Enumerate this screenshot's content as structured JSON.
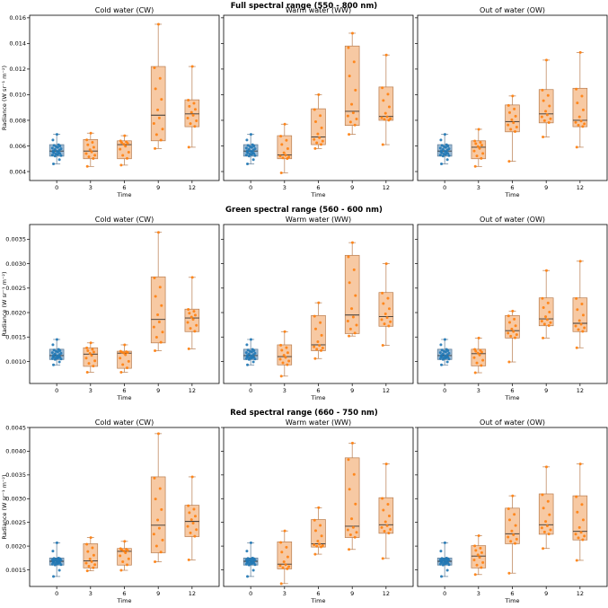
{
  "colors": {
    "control_fill": "#9ebcd6",
    "control_edge": "#5a7a96",
    "control_point": "#1f77b4",
    "treat_fill": "#f7c9a3",
    "treat_edge": "#b87c4e",
    "treat_point": "#ff7f0e",
    "median": "#333333"
  },
  "chart_data": [
    {
      "type": "box",
      "row_title": "Full spectral range (550 - 800 nm)",
      "ylabel": "Radiance (W sr⁻¹ m⁻²)",
      "xlabel": "Time",
      "categories": [
        "0",
        "3",
        "6",
        "9",
        "12"
      ],
      "ylim": [
        0.0033,
        0.0162
      ],
      "yticks": [
        "0.004",
        "0.006",
        "0.008",
        "0.010",
        "0.012",
        "0.014",
        "0.016"
      ],
      "ytick_values": [
        0.004,
        0.006,
        0.008,
        0.01,
        0.012,
        0.014,
        0.016
      ],
      "panels": [
        {
          "title": "Cold water (CW)",
          "boxes": [
            {
              "q1": 0.0052,
              "median": 0.0056,
              "q3": 0.0061,
              "whisker_low": 0.0046,
              "whisker_high": 0.0069
            },
            {
              "q1": 0.005,
              "median": 0.0056,
              "q3": 0.0065,
              "whisker_low": 0.0044,
              "whisker_high": 0.007
            },
            {
              "q1": 0.005,
              "median": 0.0061,
              "q3": 0.0064,
              "whisker_low": 0.0045,
              "whisker_high": 0.0068
            },
            {
              "q1": 0.0064,
              "median": 0.0084,
              "q3": 0.0122,
              "whisker_low": 0.0058,
              "whisker_high": 0.0155
            },
            {
              "q1": 0.0075,
              "median": 0.0085,
              "q3": 0.0096,
              "whisker_low": 0.0059,
              "whisker_high": 0.0122
            }
          ]
        },
        {
          "title": "Warm water (WW)",
          "boxes": [
            {
              "q1": 0.0052,
              "median": 0.0056,
              "q3": 0.0061,
              "whisker_low": 0.0046,
              "whisker_high": 0.0069
            },
            {
              "q1": 0.005,
              "median": 0.0053,
              "q3": 0.0068,
              "whisker_low": 0.0039,
              "whisker_high": 0.0077
            },
            {
              "q1": 0.0061,
              "median": 0.0067,
              "q3": 0.0089,
              "whisker_low": 0.0058,
              "whisker_high": 0.01
            },
            {
              "q1": 0.0076,
              "median": 0.0087,
              "q3": 0.0138,
              "whisker_low": 0.0069,
              "whisker_high": 0.0148
            },
            {
              "q1": 0.008,
              "median": 0.0083,
              "q3": 0.0106,
              "whisker_low": 0.0061,
              "whisker_high": 0.0131
            }
          ]
        },
        {
          "title": "Out of water (OW)",
          "boxes": [
            {
              "q1": 0.0052,
              "median": 0.0056,
              "q3": 0.0061,
              "whisker_low": 0.0046,
              "whisker_high": 0.0069
            },
            {
              "q1": 0.005,
              "median": 0.0059,
              "q3": 0.0064,
              "whisker_low": 0.0044,
              "whisker_high": 0.0073
            },
            {
              "q1": 0.0071,
              "median": 0.0079,
              "q3": 0.0092,
              "whisker_low": 0.0048,
              "whisker_high": 0.0099
            },
            {
              "q1": 0.0078,
              "median": 0.0085,
              "q3": 0.0104,
              "whisker_low": 0.0067,
              "whisker_high": 0.0127
            },
            {
              "q1": 0.0075,
              "median": 0.008,
              "q3": 0.0105,
              "whisker_low": 0.0059,
              "whisker_high": 0.0133
            }
          ]
        }
      ]
    },
    {
      "type": "box",
      "row_title": "Green spectral range (560 - 600 nm)",
      "ylabel": "Radiance (W sr⁻¹ m⁻²)",
      "xlabel": "Time",
      "categories": [
        "0",
        "3",
        "6",
        "9",
        "12"
      ],
      "ylim": [
        0.00055,
        0.0038
      ],
      "yticks": [
        "0.0010",
        "0.0015",
        "0.0020",
        "0.0025",
        "0.0030",
        "0.0035"
      ],
      "ytick_values": [
        0.001,
        0.0015,
        0.002,
        0.0025,
        0.003,
        0.0035
      ],
      "panels": [
        {
          "title": "Cold water (CW)",
          "boxes": [
            {
              "q1": 0.00104,
              "median": 0.00112,
              "q3": 0.00125,
              "whisker_low": 0.00093,
              "whisker_high": 0.00145
            },
            {
              "q1": 0.0009,
              "median": 0.00115,
              "q3": 0.00128,
              "whisker_low": 0.00078,
              "whisker_high": 0.00138
            },
            {
              "q1": 0.00086,
              "median": 0.00117,
              "q3": 0.00121,
              "whisker_low": 0.00078,
              "whisker_high": 0.00134
            },
            {
              "q1": 0.00138,
              "median": 0.00186,
              "q3": 0.00273,
              "whisker_low": 0.00122,
              "whisker_high": 0.00364
            },
            {
              "q1": 0.00161,
              "median": 0.00189,
              "q3": 0.00207,
              "whisker_low": 0.00126,
              "whisker_high": 0.00272
            }
          ]
        },
        {
          "title": "Warm water (WW)",
          "boxes": [
            {
              "q1": 0.00104,
              "median": 0.00112,
              "q3": 0.00125,
              "whisker_low": 0.00093,
              "whisker_high": 0.00145
            },
            {
              "q1": 0.00093,
              "median": 0.0011,
              "q3": 0.00134,
              "whisker_low": 0.0007,
              "whisker_high": 0.00161
            },
            {
              "q1": 0.00122,
              "median": 0.00134,
              "q3": 0.00194,
              "whisker_low": 0.00106,
              "whisker_high": 0.0022
            },
            {
              "q1": 0.00157,
              "median": 0.00195,
              "q3": 0.00317,
              "whisker_low": 0.00152,
              "whisker_high": 0.00343
            },
            {
              "q1": 0.00172,
              "median": 0.00192,
              "q3": 0.00241,
              "whisker_low": 0.00133,
              "whisker_high": 0.003
            }
          ]
        },
        {
          "title": "Out of water (OW)",
          "boxes": [
            {
              "q1": 0.00104,
              "median": 0.00112,
              "q3": 0.00125,
              "whisker_low": 0.00093,
              "whisker_high": 0.00145
            },
            {
              "q1": 0.00091,
              "median": 0.00116,
              "q3": 0.00125,
              "whisker_low": 0.00077,
              "whisker_high": 0.00148
            },
            {
              "q1": 0.00148,
              "median": 0.00163,
              "q3": 0.00194,
              "whisker_low": 0.00099,
              "whisker_high": 0.00203
            },
            {
              "q1": 0.00173,
              "median": 0.00187,
              "q3": 0.0023,
              "whisker_low": 0.00148,
              "whisker_high": 0.00286
            },
            {
              "q1": 0.00161,
              "median": 0.00178,
              "q3": 0.0023,
              "whisker_low": 0.00128,
              "whisker_high": 0.00305
            }
          ]
        }
      ]
    },
    {
      "type": "box",
      "row_title": "Red spectral range (660 - 750 nm)",
      "ylabel": "Radiance (W sr⁻¹ m⁻²)",
      "xlabel": "Time",
      "categories": [
        "0",
        "3",
        "6",
        "9",
        "12"
      ],
      "ylim": [
        0.00115,
        0.0045
      ],
      "yticks": [
        "0.0015",
        "0.0020",
        "0.0025",
        "0.0030",
        "0.0035",
        "0.0040",
        "0.0045"
      ],
      "ytick_values": [
        0.0015,
        0.002,
        0.0025,
        0.003,
        0.0035,
        0.004,
        0.0045
      ],
      "panels": [
        {
          "title": "Cold water (CW)",
          "boxes": [
            {
              "q1": 0.0016,
              "median": 0.00168,
              "q3": 0.00175,
              "whisker_low": 0.00136,
              "whisker_high": 0.00207
            },
            {
              "q1": 0.00154,
              "median": 0.00169,
              "q3": 0.00205,
              "whisker_low": 0.00148,
              "whisker_high": 0.00218
            },
            {
              "q1": 0.0016,
              "median": 0.00189,
              "q3": 0.00195,
              "whisker_low": 0.00149,
              "whisker_high": 0.0021
            },
            {
              "q1": 0.00186,
              "median": 0.00244,
              "q3": 0.00346,
              "whisker_low": 0.00167,
              "whisker_high": 0.00437
            },
            {
              "q1": 0.0022,
              "median": 0.00252,
              "q3": 0.00286,
              "whisker_low": 0.00171,
              "whisker_high": 0.00346
            }
          ]
        },
        {
          "title": "Warm water (WW)",
          "boxes": [
            {
              "q1": 0.0016,
              "median": 0.00168,
              "q3": 0.00175,
              "whisker_low": 0.00136,
              "whisker_high": 0.00207
            },
            {
              "q1": 0.00152,
              "median": 0.00162,
              "q3": 0.00209,
              "whisker_low": 0.00121,
              "whisker_high": 0.00232
            },
            {
              "q1": 0.00198,
              "median": 0.00205,
              "q3": 0.00256,
              "whisker_low": 0.00183,
              "whisker_high": 0.00281
            },
            {
              "q1": 0.00218,
              "median": 0.00242,
              "q3": 0.00386,
              "whisker_low": 0.00193,
              "whisker_high": 0.00417
            },
            {
              "q1": 0.00227,
              "median": 0.00245,
              "q3": 0.00302,
              "whisker_low": 0.00174,
              "whisker_high": 0.00373
            }
          ]
        },
        {
          "title": "Out of water (OW)",
          "boxes": [
            {
              "q1": 0.0016,
              "median": 0.00168,
              "q3": 0.00175,
              "whisker_low": 0.00136,
              "whisker_high": 0.00207
            },
            {
              "q1": 0.00154,
              "median": 0.00179,
              "q3": 0.00201,
              "whisker_low": 0.0014,
              "whisker_high": 0.00222
            },
            {
              "q1": 0.00205,
              "median": 0.00226,
              "q3": 0.0028,
              "whisker_low": 0.00143,
              "whisker_high": 0.00306
            },
            {
              "q1": 0.00225,
              "median": 0.00245,
              "q3": 0.0031,
              "whisker_low": 0.00195,
              "whisker_high": 0.00367
            },
            {
              "q1": 0.00213,
              "median": 0.00231,
              "q3": 0.00306,
              "whisker_low": 0.0017,
              "whisker_high": 0.00373
            }
          ]
        }
      ]
    }
  ]
}
